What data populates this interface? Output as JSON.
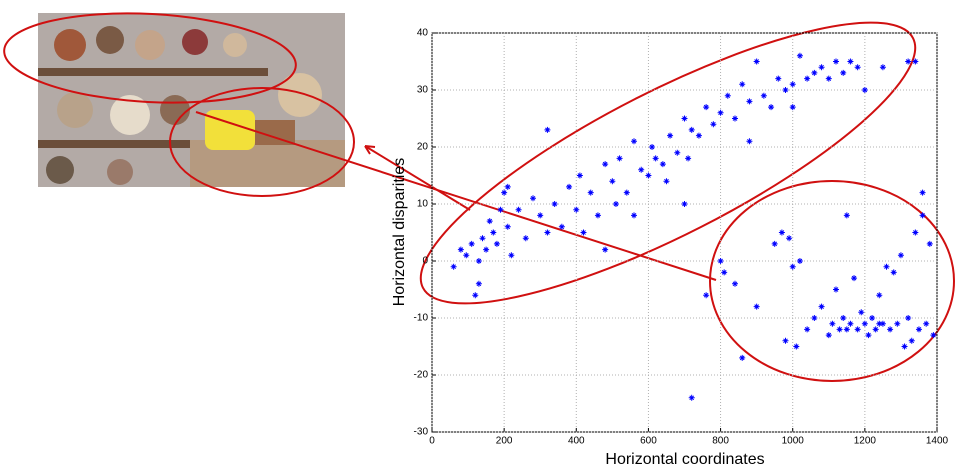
{
  "chart_data": {
    "type": "scatter",
    "x_label": "Horizontal coordinates",
    "y_label": "Horizontal disparities",
    "x": [
      60,
      80,
      95,
      110,
      120,
      130,
      140,
      150,
      160,
      170,
      180,
      190,
      200,
      210,
      220,
      240,
      260,
      280,
      300,
      320,
      340,
      360,
      380,
      400,
      410,
      420,
      440,
      460,
      480,
      500,
      510,
      520,
      540,
      560,
      580,
      600,
      610,
      620,
      640,
      660,
      680,
      700,
      710,
      720,
      740,
      760,
      780,
      800,
      820,
      840,
      860,
      880,
      900,
      920,
      940,
      960,
      980,
      1000,
      1020,
      1040,
      1060,
      1080,
      1100,
      1120,
      1140,
      1160,
      1180,
      1200,
      1250,
      1320,
      1340,
      320,
      210,
      130,
      480,
      560,
      650,
      700,
      880,
      1000,
      720,
      760,
      800,
      810,
      840,
      860,
      900,
      950,
      970,
      980,
      990,
      1000,
      1010,
      1020,
      1040,
      1060,
      1080,
      1100,
      1110,
      1120,
      1130,
      1140,
      1150,
      1160,
      1170,
      1180,
      1190,
      1200,
      1210,
      1220,
      1230,
      1240,
      1250,
      1260,
      1270,
      1280,
      1290,
      1300,
      1310,
      1320,
      1330,
      1340,
      1350,
      1360,
      1370,
      1380,
      1390,
      1150,
      1240,
      1360
    ],
    "values": [
      -1,
      2,
      1,
      3,
      -6,
      0,
      4,
      2,
      7,
      5,
      3,
      9,
      12,
      6,
      1,
      9,
      4,
      11,
      8,
      23,
      10,
      6,
      13,
      9,
      15,
      5,
      12,
      8,
      17,
      14,
      10,
      18,
      12,
      21,
      16,
      15,
      20,
      18,
      17,
      22,
      19,
      25,
      18,
      23,
      22,
      27,
      24,
      26,
      29,
      25,
      31,
      28,
      35,
      29,
      27,
      32,
      30,
      31,
      36,
      32,
      33,
      34,
      32,
      35,
      33,
      35,
      34,
      30,
      34,
      35,
      35,
      5,
      13,
      -4,
      2,
      8,
      14,
      10,
      21,
      27,
      -24,
      -6,
      0,
      -2,
      -4,
      -17,
      -8,
      3,
      5,
      -14,
      4,
      -1,
      -15,
      0,
      -12,
      -10,
      -8,
      -13,
      -11,
      -5,
      -12,
      -10,
      8,
      -11,
      -3,
      -12,
      -9,
      -11,
      -13,
      -10,
      -12,
      -6,
      -11,
      -1,
      -12,
      -2,
      -11,
      1,
      -15,
      -10,
      -14,
      5,
      -12,
      8,
      -11,
      3,
      -13,
      -12,
      -11,
      12
    ],
    "color": "#0000ff",
    "xlim": [
      0,
      1400
    ],
    "xticks": [
      0,
      200,
      400,
      600,
      800,
      1000,
      1200,
      1400
    ],
    "ylim": [
      -30,
      40
    ],
    "yticks": [
      -30,
      -20,
      -10,
      0,
      10,
      20,
      30,
      40
    ],
    "grid": true
  }
}
